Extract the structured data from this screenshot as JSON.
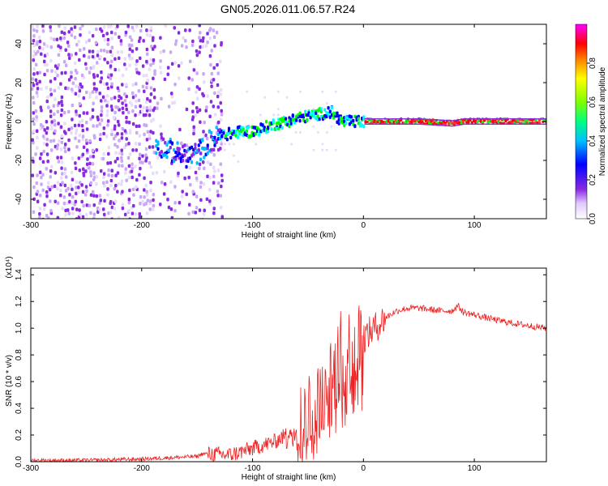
{
  "title": "GN05.2026.011.06.57.R24",
  "chart_data": [
    {
      "type": "heatmap",
      "xlabel": "Height of straight line (km)",
      "ylabel": "Frequency (Hz)",
      "xlim": [
        -300,
        165
      ],
      "ylim": [
        -50,
        50
      ],
      "xticks": [
        -300,
        -200,
        -100,
        0,
        100
      ],
      "yticks": [
        -40,
        -20,
        0,
        20,
        40
      ],
      "colorbar": {
        "label": "Normalized spectral amplitude",
        "range": [
          0.0,
          1.0
        ],
        "ticks": [
          0.0,
          0.2,
          0.4,
          0.6,
          0.8
        ],
        "colormap": [
          "#ffffff",
          "#8a2be2",
          "#0000ff",
          "#00ffff",
          "#00ff00",
          "#ffff00",
          "#ff0000",
          "#ff00ff"
        ]
      },
      "ridge": [
        {
          "x": -185,
          "y": -12
        },
        {
          "x": -170,
          "y": -16
        },
        {
          "x": -160,
          "y": -18
        },
        {
          "x": -150,
          "y": -16
        },
        {
          "x": -140,
          "y": -10
        },
        {
          "x": -130,
          "y": -7
        },
        {
          "x": -120,
          "y": -6
        },
        {
          "x": -110,
          "y": -5
        },
        {
          "x": -100,
          "y": -5
        },
        {
          "x": -90,
          "y": -3
        },
        {
          "x": -80,
          "y": -1
        },
        {
          "x": -70,
          "y": 0
        },
        {
          "x": -60,
          "y": 2
        },
        {
          "x": -50,
          "y": 3
        },
        {
          "x": -40,
          "y": 4
        },
        {
          "x": -30,
          "y": 5
        },
        {
          "x": -20,
          "y": 0
        },
        {
          "x": -10,
          "y": 0
        },
        {
          "x": 0,
          "y": 0
        },
        {
          "x": 50,
          "y": 0
        },
        {
          "x": 80,
          "y": -1
        },
        {
          "x": 90,
          "y": 0
        },
        {
          "x": 165,
          "y": 0
        }
      ]
    },
    {
      "type": "line",
      "xlabel": "Height of straight line (km)",
      "ylabel": "SNR (10 * v/v)",
      "y_multiplier": "(x10⁴)",
      "xlim": [
        -300,
        165
      ],
      "ylim": [
        0,
        1.45
      ],
      "xticks": [
        -300,
        -200,
        -100,
        0,
        100
      ],
      "yticks": [
        0.0,
        0.2,
        0.4,
        0.6,
        0.8,
        1.0,
        1.2,
        1.4
      ],
      "series": [
        {
          "color": "#ee2222",
          "x": [
            -300,
            -250,
            -200,
            -150,
            -145,
            -120,
            -100,
            -80,
            -60,
            -50,
            -40,
            -35,
            -30,
            -25,
            -20,
            -15,
            -10,
            -5,
            0,
            10,
            20,
            30,
            40,
            50,
            60,
            70,
            80,
            85,
            90,
            100,
            110,
            120,
            140,
            165
          ],
          "y": [
            0.01,
            0.01,
            0.02,
            0.04,
            0.06,
            0.05,
            0.1,
            0.15,
            0.25,
            0.32,
            0.4,
            0.45,
            0.55,
            0.65,
            0.8,
            0.8,
            0.85,
            0.88,
            0.93,
            1.0,
            1.08,
            1.13,
            1.15,
            1.15,
            1.14,
            1.13,
            1.13,
            1.17,
            1.12,
            1.1,
            1.08,
            1.06,
            1.03,
            1.0
          ]
        }
      ]
    }
  ]
}
